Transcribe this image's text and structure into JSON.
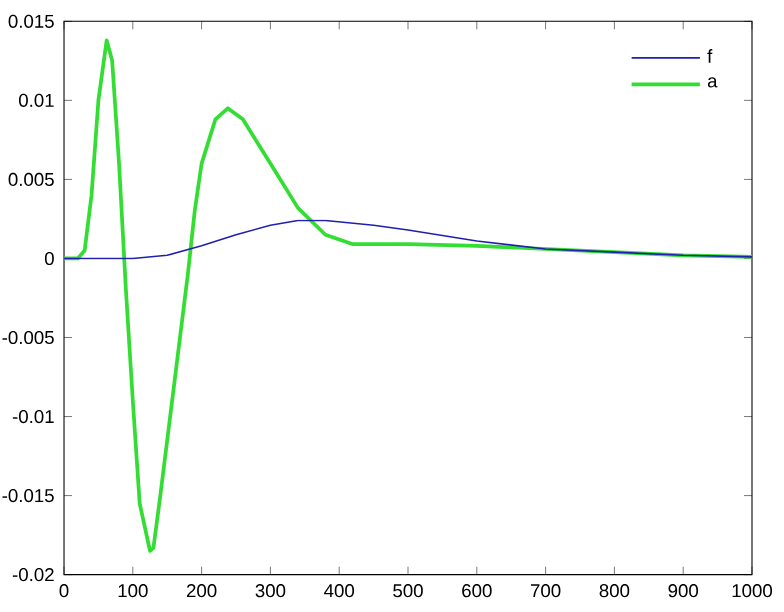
{
  "chart_data": {
    "type": "line",
    "xlim": [
      0,
      1000
    ],
    "ylim": [
      -0.02,
      0.015
    ],
    "xticks": [
      0,
      100,
      200,
      300,
      400,
      500,
      600,
      700,
      800,
      900,
      1000
    ],
    "yticks": [
      -0.02,
      -0.015,
      -0.01,
      -0.005,
      0,
      0.005,
      0.01,
      0.015
    ],
    "legend": "top right",
    "grid": false,
    "series": [
      {
        "name": "f",
        "color": "#2020b0",
        "x": [
          0,
          100,
          150,
          200,
          250,
          300,
          340,
          380,
          450,
          500,
          600,
          700,
          800,
          900,
          1000
        ],
        "values": [
          0,
          0,
          0.0002,
          0.0008,
          0.0015,
          0.0021,
          0.0024,
          0.0024,
          0.0021,
          0.0018,
          0.0011,
          0.0006,
          0.0004,
          0.0002,
          0.0001
        ]
      },
      {
        "name": "a",
        "color": "#33dd33",
        "x": [
          0,
          20,
          30,
          40,
          50,
          62,
          70,
          80,
          90,
          100,
          110,
          125,
          130,
          140,
          160,
          180,
          190,
          200,
          220,
          238,
          260,
          300,
          340,
          380,
          420,
          500,
          600,
          700,
          800,
          900,
          1000
        ],
        "values": [
          0,
          0,
          0.0005,
          0.004,
          0.01,
          0.0138,
          0.0125,
          0.006,
          -0.002,
          -0.009,
          -0.0155,
          -0.0185,
          -0.0183,
          -0.015,
          -0.008,
          -0.001,
          0.003,
          0.006,
          0.0088,
          0.0095,
          0.0088,
          0.006,
          0.0032,
          0.0015,
          0.0009,
          0.0009,
          0.0008,
          0.0006,
          0.0004,
          0.0002,
          0.0001
        ]
      }
    ]
  }
}
